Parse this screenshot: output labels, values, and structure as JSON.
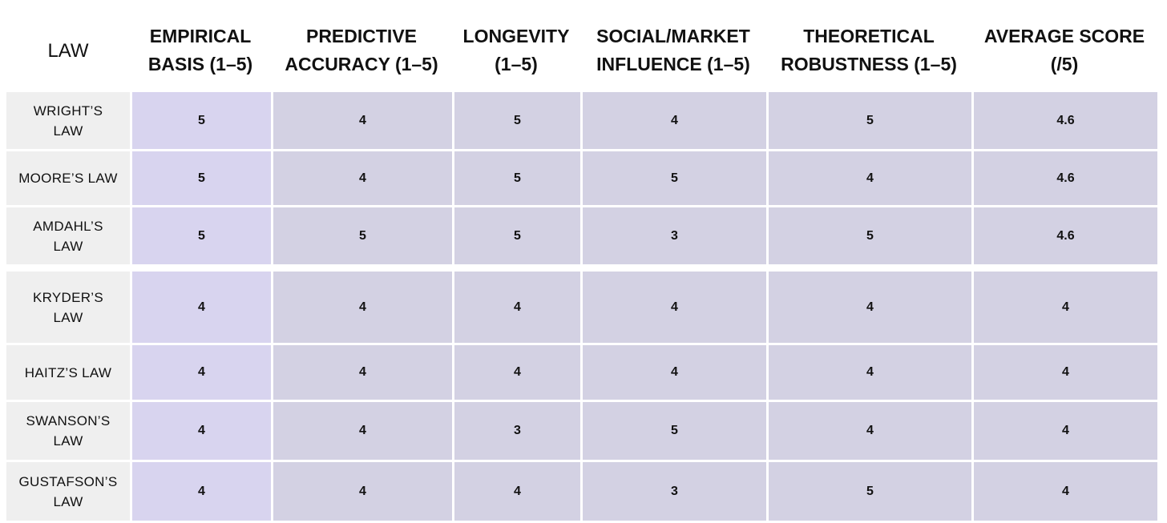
{
  "headers": [
    "LAW",
    "EMPIRICAL\nBASIS (1–5)",
    "PREDICTIVE\nACCURACY (1–5)",
    "LONGEVITY\n(1–5)",
    "SOCIAL/MARKET\nINFLUENCE (1–5)",
    "THEORETICAL\nROBUSTNESS (1–5)",
    "AVERAGE SCORE\n(/5)"
  ],
  "rows": [
    {
      "law": "WRIGHT’S\nLAW",
      "empirical": "5",
      "predictive": "4",
      "longevity": "5",
      "influence": "4",
      "robustness": "5",
      "average": "4.6"
    },
    {
      "law": "MOORE’S LAW",
      "empirical": "5",
      "predictive": "4",
      "longevity": "5",
      "influence": "5",
      "robustness": "4",
      "average": "4.6"
    },
    {
      "law": "AMDAHL’S\nLAW",
      "empirical": "5",
      "predictive": "5",
      "longevity": "5",
      "influence": "3",
      "robustness": "5",
      "average": "4.6"
    },
    {
      "law": "KRYDER’S\nLAW",
      "empirical": "4",
      "predictive": "4",
      "longevity": "4",
      "influence": "4",
      "robustness": "4",
      "average": "4"
    },
    {
      "law": "HAITZ’S LAW",
      "empirical": "4",
      "predictive": "4",
      "longevity": "4",
      "influence": "4",
      "robustness": "4",
      "average": "4"
    },
    {
      "law": "SWANSON’S\nLAW",
      "empirical": "4",
      "predictive": "4",
      "longevity": "3",
      "influence": "5",
      "robustness": "4",
      "average": "4"
    },
    {
      "law": "GUSTAFSON’S\nLAW",
      "empirical": "4",
      "predictive": "4",
      "longevity": "4",
      "influence": "3",
      "robustness": "5",
      "average": "4"
    }
  ],
  "colors": {
    "law_column_bg": "#efefef",
    "empirical_column_bg": "#d8d4ef",
    "score_cell_bg": "#d3d1e3",
    "text": "#111111"
  }
}
